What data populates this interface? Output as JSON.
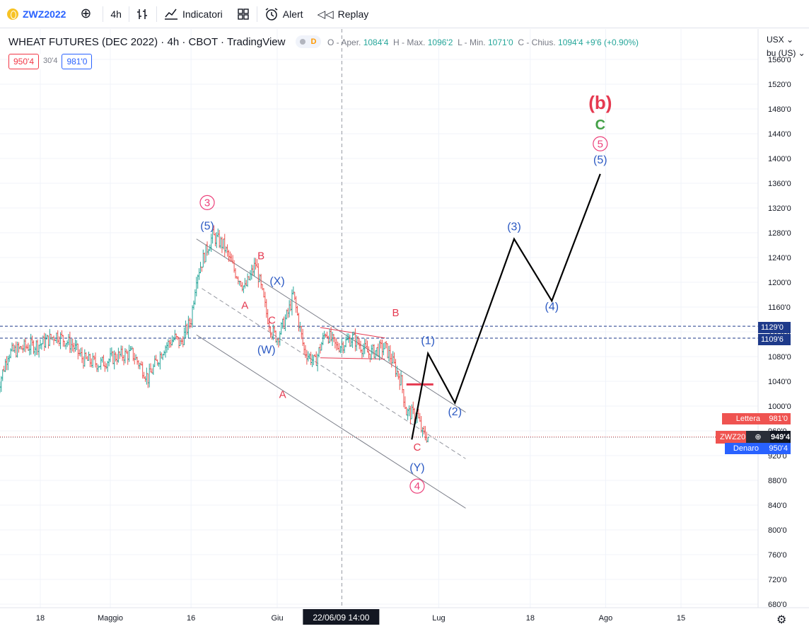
{
  "toolbar": {
    "symbol": "ZWZ2022",
    "timeframe": "4h",
    "indicators_label": "Indicatori",
    "alert_label": "Alert",
    "replay_label": "Replay"
  },
  "legend": {
    "title": "WHEAT FUTURES (DEC 2022) · 4h · CBOT · TradingView",
    "flag": "D",
    "open_label": "O - Aper.",
    "open": "1084'4",
    "high_label": "H - Max.",
    "high": "1096'2",
    "low_label": "L - Min.",
    "low": "1071'0",
    "close_label": "C - Chius.",
    "close": "1094'4",
    "change": "+9'6 (+0.90%)",
    "bid_box": "950'4",
    "spread_box": "30'4",
    "ask_box": "981'0"
  },
  "axis": {
    "unit_line1": "USX",
    "unit_line2": "bu (US)",
    "price_ticks": [
      "680'0",
      "720'0",
      "760'0",
      "800'0",
      "840'0",
      "880'0",
      "920'0",
      "960'0",
      "1000'0",
      "1040'0",
      "1080'0",
      "1120'0",
      "1160'0",
      "1200'0",
      "1240'0",
      "1280'0",
      "1320'0",
      "1360'0",
      "1400'0",
      "1440'0",
      "1480'0",
      "1520'0",
      "1560'0"
    ],
    "time_labels": [
      "18",
      "Maggio",
      "16",
      "Giu",
      "Lug",
      "18",
      "Ago",
      "15"
    ],
    "crosshair_label": "22/06/09   14:00"
  },
  "price_tags": {
    "level_1": "1129'0",
    "level_2": "1109'6",
    "ask_label": "Lettera",
    "ask_value": "981'0",
    "symbol_short": "ZWZ20",
    "last_value": "949'4",
    "bid_label": "Denaro",
    "bid_value": "950'4"
  },
  "colors": {
    "up": "#26a69a",
    "down": "#ef5350",
    "wave_blue": "#2b59c3",
    "wave_red": "#e53950",
    "wave_green": "#43a047",
    "circle_pink": "#ec407a"
  },
  "annotations": {
    "c3": "3",
    "w5a": "(5)",
    "B1": "B",
    "X": "(X)",
    "A1": "A",
    "C1": "C",
    "W": "(W)",
    "A2": "A",
    "B2": "B",
    "C2": "C",
    "Y": "(Y)",
    "c4": "4",
    "p1": "(1)",
    "p2": "(2)",
    "p3": "(3)",
    "p4": "(4)",
    "p5": "(5)",
    "c5": "5",
    "gC": "C",
    "bb": "(b)"
  },
  "chart_data": {
    "type": "candlestick",
    "symbol": "ZWZ2022",
    "title": "WHEAT FUTURES (DEC 2022) · 4h · CBOT · TradingView",
    "x_range": [
      "2022-04-10",
      "2022-08-24"
    ],
    "y_range": [
      660,
      1580
    ],
    "price_path": [
      {
        "x": "2022-04-10",
        "y": 1025
      },
      {
        "x": "2022-04-12",
        "y": 1085
      },
      {
        "x": "2022-04-15",
        "y": 1095
      },
      {
        "x": "2022-04-18",
        "y": 1100
      },
      {
        "x": "2022-04-21",
        "y": 1115
      },
      {
        "x": "2022-04-24",
        "y": 1098
      },
      {
        "x": "2022-04-26",
        "y": 1075
      },
      {
        "x": "2022-04-29",
        "y": 1068
      },
      {
        "x": "2022-05-02",
        "y": 1080
      },
      {
        "x": "2022-05-05",
        "y": 1085
      },
      {
        "x": "2022-05-07",
        "y": 1060
      },
      {
        "x": "2022-05-08",
        "y": 1045
      },
      {
        "x": "2022-05-11",
        "y": 1095
      },
      {
        "x": "2022-05-13",
        "y": 1110
      },
      {
        "x": "2022-05-14",
        "y": 1100
      },
      {
        "x": "2022-05-16",
        "y": 1140
      },
      {
        "x": "2022-05-17",
        "y": 1210
      },
      {
        "x": "2022-05-19",
        "y": 1255
      },
      {
        "x": "2022-05-20",
        "y": 1275
      },
      {
        "x": "2022-05-22",
        "y": 1260
      },
      {
        "x": "2022-05-24",
        "y": 1220
      },
      {
        "x": "2022-05-26",
        "y": 1190
      },
      {
        "x": "2022-05-28",
        "y": 1230
      },
      {
        "x": "2022-05-30",
        "y": 1150
      },
      {
        "x": "2022-05-31",
        "y": 1120
      },
      {
        "x": "2022-06-01",
        "y": 1110
      },
      {
        "x": "2022-06-03",
        "y": 1150
      },
      {
        "x": "2022-06-04",
        "y": 1180
      },
      {
        "x": "2022-06-06",
        "y": 1090
      },
      {
        "x": "2022-06-08",
        "y": 1070
      },
      {
        "x": "2022-06-10",
        "y": 1120
      },
      {
        "x": "2022-06-12",
        "y": 1095
      },
      {
        "x": "2022-06-15",
        "y": 1110
      },
      {
        "x": "2022-06-18",
        "y": 1085
      },
      {
        "x": "2022-06-21",
        "y": 1095
      },
      {
        "x": "2022-06-22",
        "y": 1080
      },
      {
        "x": "2022-06-24",
        "y": 1040
      },
      {
        "x": "2022-06-25",
        "y": 990
      },
      {
        "x": "2022-06-27",
        "y": 985
      },
      {
        "x": "2022-06-28",
        "y": 955
      },
      {
        "x": "2022-06-29",
        "y": 950
      }
    ],
    "horizontal_levels": [
      1129.0,
      1109.75
    ],
    "current_price": 949.5,
    "bid": 950.5,
    "ask": 981.0,
    "channel": {
      "upper": [
        {
          "x": "2022-05-17",
          "y": 1270
        },
        {
          "x": "2022-07-06",
          "y": 990
        }
      ],
      "middle": [
        {
          "x": "2022-05-18",
          "y": 1190
        },
        {
          "x": "2022-07-06",
          "y": 915
        }
      ],
      "lower": [
        {
          "x": "2022-05-17",
          "y": 1115
        },
        {
          "x": "2022-07-06",
          "y": 835
        }
      ]
    },
    "wedge_lines": [
      [
        {
          "x": "2022-06-09",
          "y": 1127
        },
        {
          "x": "2022-06-21",
          "y": 1110
        }
      ],
      [
        {
          "x": "2022-06-09",
          "y": 1078
        },
        {
          "x": "2022-06-21",
          "y": 1076
        }
      ]
    ],
    "red_level": {
      "from": "2022-06-25",
      "to": "2022-06-30",
      "y": 1035
    },
    "projection": [
      {
        "x": "2022-06-26",
        "y": 946
      },
      {
        "x": "2022-06-29",
        "y": 1085
      },
      {
        "x": "2022-07-04",
        "y": 1005
      },
      {
        "x": "2022-07-15",
        "y": 1270
      },
      {
        "x": "2022-07-22",
        "y": 1170
      },
      {
        "x": "2022-07-31",
        "y": 1375
      }
    ],
    "wave_labels": [
      {
        "text": "3",
        "style": "circle",
        "x": "2022-05-19",
        "y": 1323
      },
      {
        "text": "(5)",
        "x": "2022-05-19",
        "y": 1285
      },
      {
        "text": "B",
        "x": "2022-05-29",
        "y": 1237
      },
      {
        "text": "(X)",
        "x": "2022-06-01",
        "y": 1196
      },
      {
        "text": "A",
        "x": "2022-05-26",
        "y": 1157
      },
      {
        "text": "C",
        "x": "2022-05-31",
        "y": 1133
      },
      {
        "text": "(W)",
        "x": "2022-05-30",
        "y": 1085
      },
      {
        "text": "A",
        "x": "2022-06-02",
        "y": 1013
      },
      {
        "text": "B",
        "x": "2022-06-23",
        "y": 1145
      },
      {
        "text": "C",
        "x": "2022-06-27",
        "y": 928
      },
      {
        "text": "(Y)",
        "x": "2022-06-27",
        "y": 895
      },
      {
        "text": "4",
        "style": "circle",
        "x": "2022-06-27",
        "y": 865
      },
      {
        "text": "(1)",
        "x": "2022-06-29",
        "y": 1100
      },
      {
        "text": "(2)",
        "x": "2022-07-04",
        "y": 985
      },
      {
        "text": "(3)",
        "x": "2022-07-15",
        "y": 1284
      },
      {
        "text": "(4)",
        "x": "2022-07-22",
        "y": 1155
      },
      {
        "text": "(5)",
        "x": "2022-07-31",
        "y": 1392
      },
      {
        "text": "5",
        "style": "circle",
        "x": "2022-07-31",
        "y": 1418
      },
      {
        "text": "C",
        "x": "2022-07-31",
        "y": 1447
      },
      {
        "text": "(b)",
        "x": "2022-07-31",
        "y": 1480
      }
    ]
  }
}
